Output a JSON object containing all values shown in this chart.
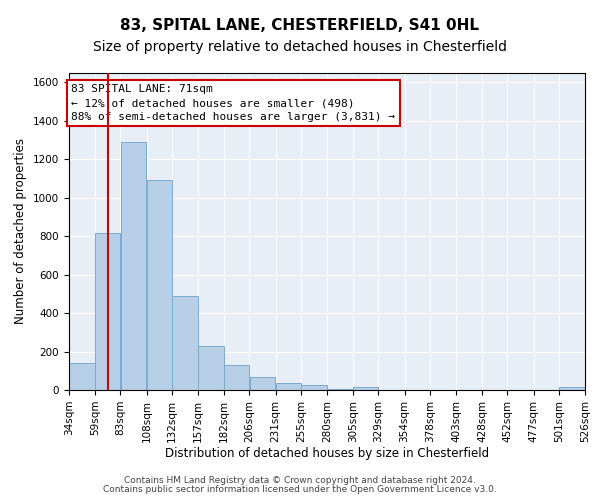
{
  "title1": "83, SPITAL LANE, CHESTERFIELD, S41 0HL",
  "title2": "Size of property relative to detached houses in Chesterfield",
  "xlabel": "Distribution of detached houses by size in Chesterfield",
  "ylabel": "Number of detached properties",
  "footer1": "Contains HM Land Registry data © Crown copyright and database right 2024.",
  "footer2": "Contains public sector information licensed under the Open Government Licence v3.0.",
  "annotation_line1": "83 SPITAL LANE: 71sqm",
  "annotation_line2": "← 12% of detached houses are smaller (498)",
  "annotation_line3": "88% of semi-detached houses are larger (3,831) →",
  "bar_color": "#b8cfe8",
  "bar_edge_color": "#7aaad0",
  "vline_color": "#cc0000",
  "vline_x": 71,
  "bin_edges": [
    34,
    59,
    83,
    108,
    132,
    157,
    182,
    206,
    231,
    255,
    280,
    305,
    329,
    354,
    378,
    403,
    428,
    452,
    477,
    501,
    526
  ],
  "bar_heights": [
    140,
    815,
    1290,
    1090,
    490,
    230,
    130,
    65,
    38,
    27,
    5,
    15,
    2,
    0,
    0,
    0,
    0,
    0,
    0,
    15
  ],
  "ylim": [
    0,
    1650
  ],
  "yticks": [
    0,
    200,
    400,
    600,
    800,
    1000,
    1200,
    1400,
    1600
  ],
  "bg_color": "#e8eef6",
  "grid_color": "white",
  "title1_fontsize": 11,
  "title2_fontsize": 10,
  "axis_label_fontsize": 8.5,
  "tick_fontsize": 7.5,
  "annotation_fontsize": 8,
  "footer_fontsize": 6.5
}
